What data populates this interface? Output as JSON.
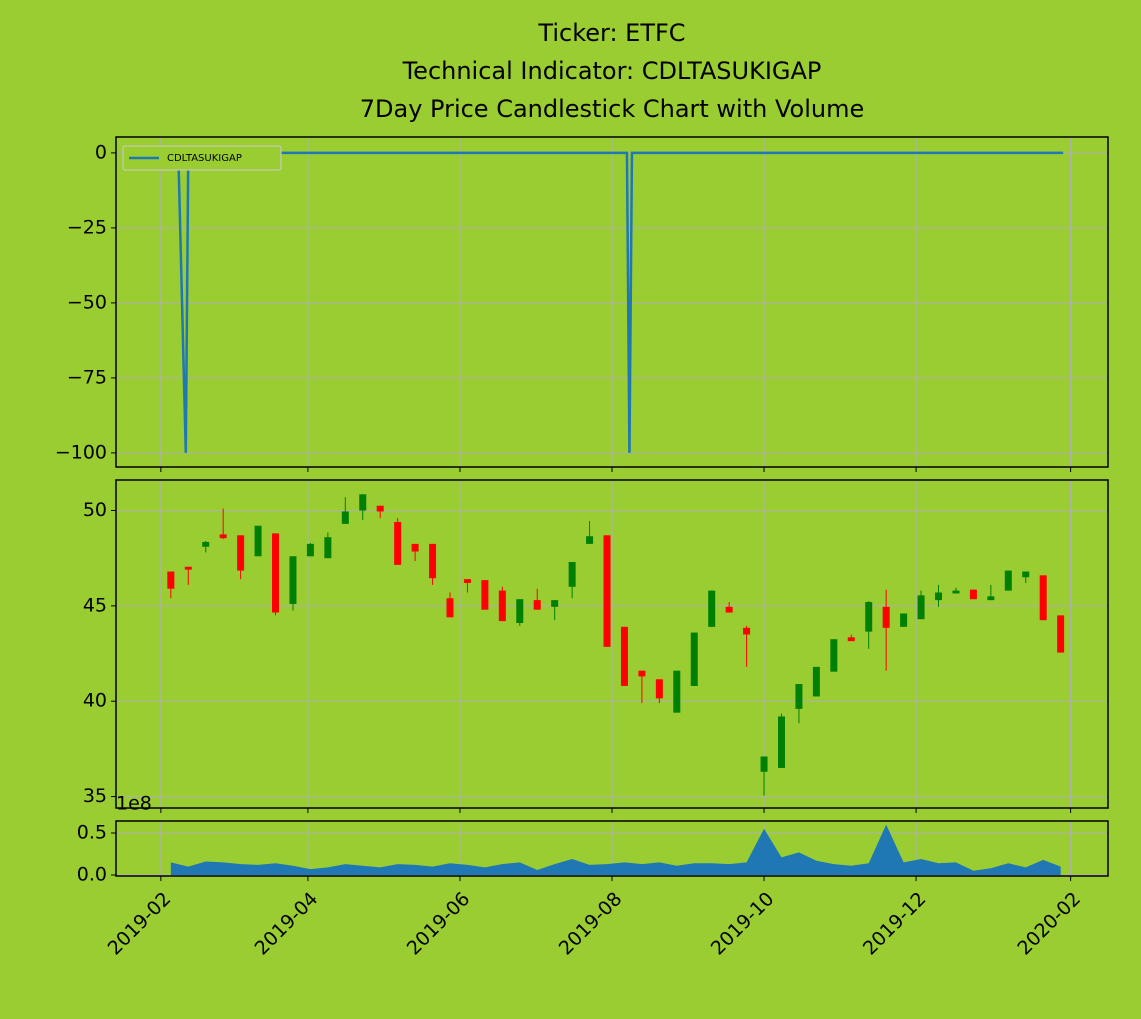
{
  "chart_data": [
    {
      "type": "line",
      "title": [
        "Ticker: ETFC",
        "Technical Indicator: CDLTASUKIGAP",
        "7Day Price Candlestick Chart with Volume"
      ],
      "x": [
        "2019-02-07",
        "2019-02-08",
        "2019-02-11",
        "2019-02-12",
        "2019-08-07",
        "2019-08-08",
        "2019-08-09",
        "2020-01-29"
      ],
      "series": [
        {
          "name": "CDLTASUKIGAP",
          "color": "#1f77b4",
          "values": [
            0,
            0,
            -100,
            0,
            0,
            -100,
            0,
            0
          ]
        }
      ],
      "ylim": [
        -104.7,
        5.3
      ],
      "yticks": [
        0,
        {
          "value": -25,
          "label": "−25"
        },
        {
          "value": -50,
          "label": "−50"
        },
        {
          "value": -75,
          "label": "−75"
        },
        {
          "value": -100,
          "label": "−100"
        }
      ],
      "grid": true,
      "legend": "upper left"
    },
    {
      "type": "candlestick",
      "x": [
        "2019-02-05",
        "2019-02-12",
        "2019-02-19",
        "2019-02-26",
        "2019-03-05",
        "2019-03-12",
        "2019-03-19",
        "2019-03-26",
        "2019-04-02",
        "2019-04-09",
        "2019-04-16",
        "2019-04-23",
        "2019-04-30",
        "2019-05-07",
        "2019-05-14",
        "2019-05-21",
        "2019-05-28",
        "2019-06-04",
        "2019-06-11",
        "2019-06-18",
        "2019-06-25",
        "2019-07-02",
        "2019-07-09",
        "2019-07-16",
        "2019-07-23",
        "2019-07-30",
        "2019-08-06",
        "2019-08-13",
        "2019-08-20",
        "2019-08-27",
        "2019-09-03",
        "2019-09-10",
        "2019-09-17",
        "2019-09-24",
        "2019-10-01",
        "2019-10-08",
        "2019-10-15",
        "2019-10-22",
        "2019-10-29",
        "2019-11-05",
        "2019-11-12",
        "2019-11-19",
        "2019-11-26",
        "2019-12-03",
        "2019-12-10",
        "2019-12-17",
        "2019-12-24",
        "2019-12-31",
        "2020-01-07",
        "2020-01-14",
        "2020-01-21",
        "2020-01-28"
      ],
      "open": [
        46.8,
        47.05,
        48.1,
        48.75,
        48.7,
        47.6,
        48.8,
        45.1,
        47.6,
        47.5,
        49.3,
        50.0,
        50.25,
        49.4,
        48.25,
        48.25,
        45.4,
        46.4,
        46.35,
        45.8,
        44.1,
        45.3,
        44.95,
        46.0,
        48.25,
        48.7,
        43.9,
        41.6,
        41.15,
        39.4,
        40.8,
        43.9,
        44.95,
        43.85,
        36.3,
        36.5,
        39.6,
        40.25,
        41.55,
        43.35,
        43.65,
        44.95,
        43.9,
        44.3,
        45.3,
        45.65,
        45.85,
        45.3,
        45.8,
        46.5,
        46.6,
        44.5
      ],
      "high": [
        46.8,
        47.05,
        48.4,
        50.1,
        48.7,
        49.2,
        48.8,
        47.6,
        48.3,
        48.85,
        50.7,
        50.85,
        50.25,
        49.6,
        48.25,
        48.25,
        45.7,
        46.4,
        46.35,
        46.0,
        45.35,
        45.9,
        45.3,
        47.3,
        49.45,
        48.7,
        43.9,
        41.6,
        41.15,
        41.6,
        43.6,
        45.8,
        45.2,
        43.95,
        37.1,
        39.35,
        40.9,
        41.8,
        43.25,
        43.5,
        45.25,
        45.85,
        44.6,
        45.8,
        46.1,
        45.95,
        45.85,
        46.1,
        46.85,
        46.8,
        46.6,
        44.5
      ],
      "low": [
        45.4,
        46.1,
        47.8,
        48.5,
        46.4,
        47.6,
        44.5,
        44.75,
        47.6,
        47.5,
        49.3,
        49.5,
        49.6,
        47.15,
        47.35,
        46.1,
        44.4,
        45.7,
        44.8,
        44.2,
        43.95,
        44.8,
        44.25,
        45.4,
        48.25,
        42.85,
        40.8,
        39.9,
        39.9,
        39.4,
        40.8,
        43.9,
        44.65,
        41.8,
        35.05,
        36.5,
        38.85,
        40.25,
        41.55,
        43.15,
        42.75,
        41.6,
        43.9,
        44.3,
        44.95,
        45.65,
        45.35,
        45.3,
        45.8,
        46.2,
        44.25,
        42.55
      ],
      "close": [
        45.9,
        46.9,
        48.35,
        48.55,
        46.85,
        49.2,
        44.65,
        47.6,
        48.25,
        48.6,
        49.95,
        50.85,
        49.95,
        47.15,
        47.85,
        46.45,
        44.4,
        46.2,
        44.8,
        44.2,
        45.35,
        44.8,
        45.3,
        47.3,
        48.65,
        42.85,
        40.8,
        41.3,
        40.15,
        41.6,
        43.6,
        45.8,
        44.65,
        43.5,
        37.1,
        39.2,
        40.9,
        41.8,
        43.25,
        43.15,
        45.2,
        43.85,
        44.6,
        45.55,
        45.7,
        45.8,
        45.35,
        45.5,
        46.85,
        46.8,
        44.25,
        42.55
      ],
      "up_color": "green",
      "down_color": "red",
      "ylim": [
        34.4,
        51.6
      ],
      "yticks": [
        35,
        40,
        45,
        50
      ],
      "grid": true
    },
    {
      "type": "area",
      "x": [
        "2019-02-05",
        "2019-02-12",
        "2019-02-19",
        "2019-02-26",
        "2019-03-05",
        "2019-03-12",
        "2019-03-19",
        "2019-03-26",
        "2019-04-02",
        "2019-04-09",
        "2019-04-16",
        "2019-04-23",
        "2019-04-30",
        "2019-05-07",
        "2019-05-14",
        "2019-05-21",
        "2019-05-28",
        "2019-06-04",
        "2019-06-11",
        "2019-06-18",
        "2019-06-25",
        "2019-07-02",
        "2019-07-09",
        "2019-07-16",
        "2019-07-23",
        "2019-07-30",
        "2019-08-06",
        "2019-08-13",
        "2019-08-20",
        "2019-08-27",
        "2019-09-03",
        "2019-09-10",
        "2019-09-17",
        "2019-09-24",
        "2019-10-01",
        "2019-10-08",
        "2019-10-15",
        "2019-10-22",
        "2019-10-29",
        "2019-11-05",
        "2019-11-12",
        "2019-11-19",
        "2019-11-26",
        "2019-12-03",
        "2019-12-10",
        "2019-12-17",
        "2019-12-24",
        "2019-12-31",
        "2020-01-07",
        "2020-01-14",
        "2020-01-21",
        "2020-01-28"
      ],
      "values": [
        0.15,
        0.1,
        0.16,
        0.15,
        0.13,
        0.12,
        0.14,
        0.11,
        0.07,
        0.09,
        0.13,
        0.11,
        0.09,
        0.13,
        0.12,
        0.1,
        0.14,
        0.12,
        0.09,
        0.13,
        0.15,
        0.06,
        0.13,
        0.19,
        0.12,
        0.13,
        0.15,
        0.13,
        0.15,
        0.11,
        0.14,
        0.14,
        0.13,
        0.15,
        0.55,
        0.21,
        0.27,
        0.17,
        0.13,
        0.11,
        0.14,
        0.6,
        0.15,
        0.19,
        0.14,
        0.15,
        0.05,
        0.08,
        0.14,
        0.09,
        0.18,
        0.1
      ],
      "color": "#1f77b4",
      "ylim": [
        -0.012,
        0.643
      ],
      "yticks": [
        {
          "value": 0,
          "label": "0.0"
        },
        0.5
      ],
      "offset_text": "1e8",
      "xlim": [
        "2019-01-14",
        "2020-02-16"
      ],
      "xticks": [
        {
          "value": "2019-02-01",
          "label": "2019-02"
        },
        {
          "value": "2019-04-01",
          "label": "2019-04"
        },
        {
          "value": "2019-06-01",
          "label": "2019-06"
        },
        {
          "value": "2019-08-01",
          "label": "2019-08"
        },
        {
          "value": "2019-10-01",
          "label": "2019-10"
        },
        {
          "value": "2019-12-01",
          "label": "2019-12"
        },
        {
          "value": "2020-02-01",
          "label": "2020-02"
        }
      ],
      "grid": true
    }
  ]
}
